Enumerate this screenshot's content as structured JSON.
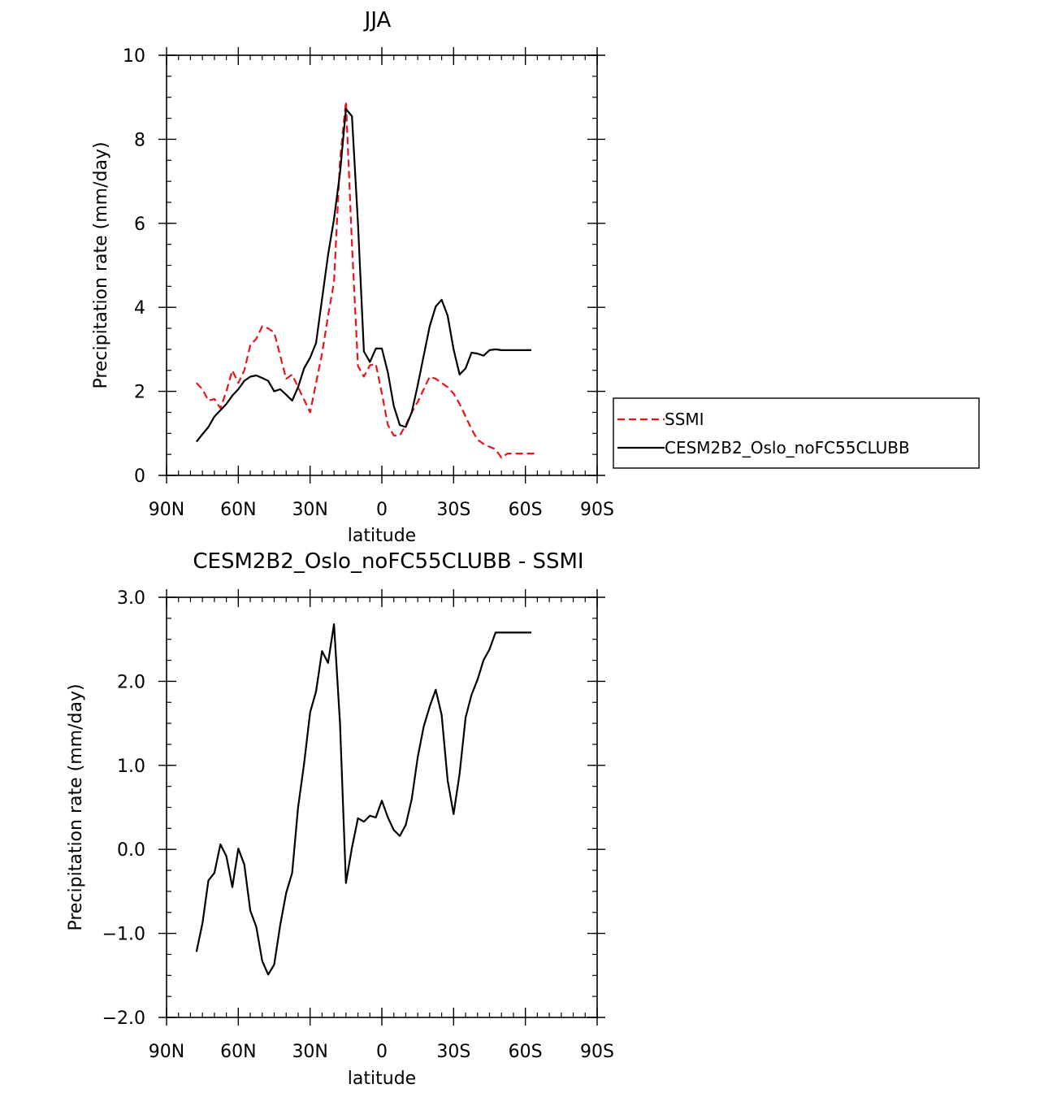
{
  "chart_data": [
    {
      "type": "line",
      "title": "JJA",
      "xlabel": "latitude",
      "ylabel": "Precipitation rate (mm/day)",
      "xlim": [
        90,
        -90
      ],
      "ylim": [
        0,
        10
      ],
      "xticks": [
        90,
        60,
        30,
        0,
        -30,
        -60,
        -90
      ],
      "xticklabels": [
        "90N",
        "60N",
        "30N",
        "0",
        "30S",
        "60S",
        "90S"
      ],
      "yticks": [
        0,
        2,
        4,
        6,
        8,
        10
      ],
      "yticklabels": [
        "0",
        "2",
        "4",
        "6",
        "8",
        "10"
      ],
      "legend": "right",
      "series": [
        {
          "name": "SSMI",
          "color": "#e8141c",
          "dash": true,
          "x": [
            77.5,
            75,
            72.5,
            70,
            67.5,
            65,
            62.5,
            60,
            57.5,
            55,
            52.5,
            50,
            47.5,
            45,
            42.5,
            40,
            37.5,
            35,
            32.5,
            30,
            27.5,
            25,
            22.5,
            20,
            17.5,
            15,
            12.5,
            10,
            7.5,
            5,
            2.5,
            0,
            -2.5,
            -5,
            -7.5,
            -10,
            -12.5,
            -15,
            -17.5,
            -20,
            -22.5,
            -25,
            -27.5,
            -30,
            -32.5,
            -35,
            -37.5,
            -40,
            -42.5,
            -45,
            -47.5,
            -50,
            -52.5,
            -55,
            -57.5,
            -60,
            -62.5,
            -65
          ],
          "y": [
            2.2,
            2.05,
            1.78,
            1.82,
            1.6,
            2.0,
            2.5,
            2.2,
            2.5,
            3.1,
            3.25,
            3.55,
            3.5,
            3.4,
            2.85,
            2.3,
            2.4,
            2.1,
            1.8,
            1.5,
            2.2,
            2.9,
            3.8,
            4.6,
            7.5,
            8.9,
            5.5,
            2.6,
            2.35,
            2.62,
            2.65,
            1.95,
            1.2,
            0.95,
            0.95,
            1.2,
            1.5,
            1.75,
            2.05,
            2.35,
            2.3,
            2.2,
            2.1,
            1.95,
            1.7,
            1.4,
            1.1,
            0.85,
            0.75,
            0.68,
            0.62,
            0.42,
            0.52,
            0.52,
            0.52,
            0.52,
            0.52,
            0.52
          ]
        },
        {
          "name": "CESM2B2_Oslo_noFC55CLUBB",
          "color": "#000000",
          "dash": false,
          "x": [
            77.5,
            75,
            72.5,
            70,
            67.5,
            65,
            62.5,
            60,
            57.5,
            55,
            52.5,
            50,
            47.5,
            45,
            42.5,
            40,
            37.5,
            35,
            32.5,
            30,
            27.5,
            25,
            22.5,
            20,
            17.5,
            15,
            12.5,
            10,
            7.5,
            5,
            2.5,
            0,
            -2.5,
            -5,
            -7.5,
            -10,
            -12.5,
            -15,
            -17.5,
            -20,
            -22.5,
            -25,
            -27.5,
            -30,
            -32.5,
            -35,
            -37.5,
            -40,
            -42.5,
            -45,
            -47.5,
            -50,
            -52.5,
            -55,
            -57.5,
            -60,
            -62.5
          ],
          "y": [
            0.8,
            0.98,
            1.15,
            1.4,
            1.55,
            1.7,
            1.9,
            2.05,
            2.25,
            2.35,
            2.38,
            2.32,
            2.25,
            2.0,
            2.05,
            1.92,
            1.78,
            2.1,
            2.55,
            2.8,
            3.15,
            4.2,
            5.25,
            6.1,
            7.2,
            8.72,
            8.55,
            6.0,
            2.95,
            2.7,
            3.02,
            3.02,
            2.45,
            1.65,
            1.2,
            1.15,
            1.5,
            2.15,
            2.85,
            3.55,
            4.02,
            4.18,
            3.8,
            3.0,
            2.4,
            2.55,
            2.92,
            2.9,
            2.85,
            2.98,
            3.0,
            2.98,
            2.98,
            2.98,
            2.98,
            2.98,
            2.98
          ]
        }
      ]
    },
    {
      "type": "line",
      "title": "CESM2B2_Oslo_noFC55CLUBB - SSMI",
      "xlabel": "latitude",
      "ylabel": "Precipitation rate (mm/day)",
      "xlim": [
        90,
        -90
      ],
      "ylim": [
        -2.0,
        3.0
      ],
      "xticks": [
        90,
        60,
        30,
        0,
        -30,
        -60,
        -90
      ],
      "xticklabels": [
        "90N",
        "60N",
        "30N",
        "0",
        "30S",
        "60S",
        "90S"
      ],
      "yticks": [
        -2.0,
        -1.0,
        0.0,
        1.0,
        2.0,
        3.0
      ],
      "yticklabels": [
        "−2.0",
        "−1.0",
        "0.0",
        "1.0",
        "2.0",
        "3.0"
      ],
      "series": [
        {
          "color": "#000000",
          "dash": false,
          "x": [
            77.5,
            75,
            72.5,
            70,
            67.5,
            65,
            62.5,
            60,
            57.5,
            55,
            52.5,
            50,
            47.5,
            45,
            42.5,
            40,
            37.5,
            35,
            32.5,
            30,
            27.5,
            25,
            22.5,
            20,
            17.5,
            15,
            12.5,
            10,
            7.5,
            5,
            2.5,
            0,
            -2.5,
            -5,
            -7.5,
            -10,
            -12.5,
            -15,
            -17.5,
            -20,
            -22.5,
            -25,
            -27.5,
            -30,
            -32.5,
            -35,
            -37.5,
            -40,
            -42.5,
            -45,
            -47.5,
            -50,
            -52.5,
            -55,
            -57.5,
            -60,
            -62.5
          ],
          "y": [
            -1.22,
            -0.88,
            -0.37,
            -0.28,
            0.06,
            -0.08,
            -0.45,
            0.01,
            -0.18,
            -0.73,
            -0.92,
            -1.33,
            -1.49,
            -1.37,
            -0.9,
            -0.52,
            -0.28,
            0.5,
            1.02,
            1.63,
            1.88,
            2.36,
            2.22,
            2.68,
            1.5,
            -0.4,
            0.02,
            0.37,
            0.33,
            0.4,
            0.38,
            0.58,
            0.38,
            0.23,
            0.16,
            0.29,
            0.6,
            1.1,
            1.46,
            1.7,
            1.9,
            1.6,
            0.82,
            0.42,
            0.9,
            1.57,
            1.84,
            2.02,
            2.25,
            2.38,
            2.58,
            2.58,
            2.58,
            2.58,
            2.58,
            2.58,
            2.58
          ]
        }
      ]
    }
  ]
}
